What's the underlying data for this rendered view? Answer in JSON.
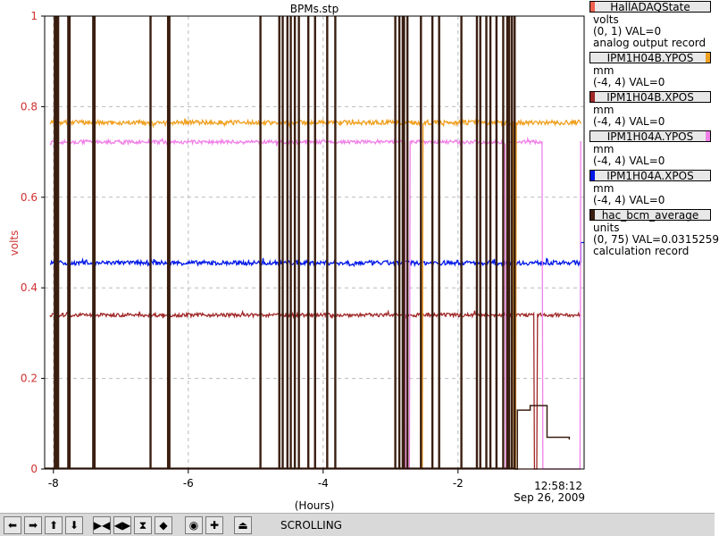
{
  "chart_data": {
    "type": "line",
    "title": "BPMs.stp",
    "xlabel": "(Hours)",
    "ylabel": "volts",
    "xlim": [
      -8.13,
      -0.13
    ],
    "ylim": [
      0,
      1
    ],
    "x_ticks": [
      -8,
      -6,
      -4,
      -2
    ],
    "x_tick_labels": [
      "-8",
      "-6",
      "-4",
      "-2"
    ],
    "y_ticks": [
      0,
      0.2,
      0.4,
      0.6,
      0.8,
      1
    ],
    "y_tick_labels": [
      "0",
      "0.2",
      "0.4",
      "0.6",
      "0.8",
      "1"
    ],
    "grid": true,
    "end_time": "12:58:12",
    "end_date": "Sep 26, 2009",
    "series": [
      {
        "name": "HallADAQState",
        "color": "#f06050",
        "level": 0.0,
        "noise": 0.0
      },
      {
        "name": "IPM1H04B.YPOS",
        "color": "#f0a020",
        "level": 0.765,
        "noise": 0.005,
        "dropouts": [
          [
            -2.55,
            -2.52
          ],
          [
            -1.18,
            -1.14
          ]
        ]
      },
      {
        "name": "IPM1H04B.XPOS",
        "color": "#a02828",
        "level": 0.34,
        "noise": 0.004,
        "dropouts": [
          [
            -0.87,
            -0.83
          ]
        ]
      },
      {
        "name": "IPM1H04A.YPOS",
        "color": "#f080e8",
        "level": 0.722,
        "noise": 0.004,
        "dropouts": [
          [
            -2.78,
            -2.72
          ],
          [
            -1.3,
            -1.26
          ],
          [
            -0.75,
            -0.18
          ]
        ]
      },
      {
        "name": "IPM1H04A.XPOS",
        "color": "#0018e8",
        "level": 0.455,
        "noise": 0.005,
        "end_level": 0.5
      },
      {
        "name": "hac_bcm_average",
        "color": "#3a1e10",
        "spikes": [
          -7.98,
          -7.95,
          -7.93,
          -7.78,
          -7.76,
          -7.41,
          -7.39,
          -6.56,
          -6.3,
          -6.28,
          -4.93,
          -4.65,
          -4.6,
          -4.53,
          -4.48,
          -4.42,
          -4.36,
          -4.22,
          -4.12,
          -3.94,
          -3.82,
          -2.93,
          -2.87,
          -2.82,
          -2.8,
          -2.75,
          -2.55,
          -2.38,
          -2.28,
          -1.95,
          -1.72,
          -1.67,
          -1.58,
          -1.52,
          -1.43,
          -1.33,
          -1.27,
          -1.24,
          -1.2,
          -1.16
        ],
        "tail": [
          [
            -1.16,
            0.0
          ],
          [
            -1.12,
            0.13
          ],
          [
            -0.93,
            0.14
          ],
          [
            -0.68,
            0.14
          ],
          [
            -0.68,
            0.07
          ],
          [
            -0.35,
            0.065
          ]
        ]
      }
    ]
  },
  "legend": {
    "items": [
      {
        "name": "HallADAQState",
        "color": "#f06050",
        "bar_side": "left",
        "lines": [
          "volts",
          "(0, 1) VAL=0",
          "analog output record"
        ]
      },
      {
        "name": "IPM1H04B.YPOS",
        "color": "#f0a020",
        "bar_side": "right",
        "lines": [
          "mm",
          "(-4, 4) VAL=0"
        ]
      },
      {
        "name": "IPM1H04B.XPOS",
        "color": "#a02828",
        "bar_side": "left",
        "lines": [
          "mm",
          "(-4, 4) VAL=0"
        ]
      },
      {
        "name": "IPM1H04A.YPOS",
        "color": "#f080e8",
        "bar_side": "right",
        "lines": [
          "mm",
          "(-4, 4) VAL=0"
        ]
      },
      {
        "name": "IPM1H04A.XPOS",
        "color": "#0018e8",
        "bar_side": "left",
        "lines": [
          "mm",
          "(-4, 4) VAL=0"
        ]
      },
      {
        "name": "hac_bcm_average",
        "color": "#3a1e10",
        "bar_side": "left",
        "lines": [
          "units",
          "(0, 75) VAL=0.0315259",
          "calculation record"
        ]
      }
    ]
  },
  "toolbar": {
    "status": "SCROLLING",
    "buttons": [
      {
        "name": "scroll-left-button",
        "icon": "arrow-left-icon",
        "glyph": "⬅"
      },
      {
        "name": "scroll-right-button",
        "icon": "arrow-right-icon",
        "glyph": "➡"
      },
      {
        "name": "scroll-up-button",
        "icon": "arrow-up-icon",
        "glyph": "⬆"
      },
      {
        "name": "scroll-down-button",
        "icon": "arrow-down-icon",
        "glyph": "⬇"
      },
      {
        "name": "zoom-in-x-button",
        "icon": "zoom-in-x-icon",
        "glyph": "▶◀"
      },
      {
        "name": "zoom-out-x-button",
        "icon": "zoom-out-x-icon",
        "glyph": "◀▶"
      },
      {
        "name": "zoom-in-y-button",
        "icon": "zoom-in-y-icon",
        "glyph": "⧗"
      },
      {
        "name": "zoom-out-y-button",
        "icon": "zoom-out-y-icon",
        "glyph": "◆"
      },
      {
        "name": "center-button",
        "icon": "center-icon",
        "glyph": "◉"
      },
      {
        "name": "add-button",
        "icon": "plus-icon",
        "glyph": "✚"
      },
      {
        "name": "scroll-mode-button",
        "icon": "scroll-mode-icon",
        "glyph": "⏏"
      }
    ]
  }
}
